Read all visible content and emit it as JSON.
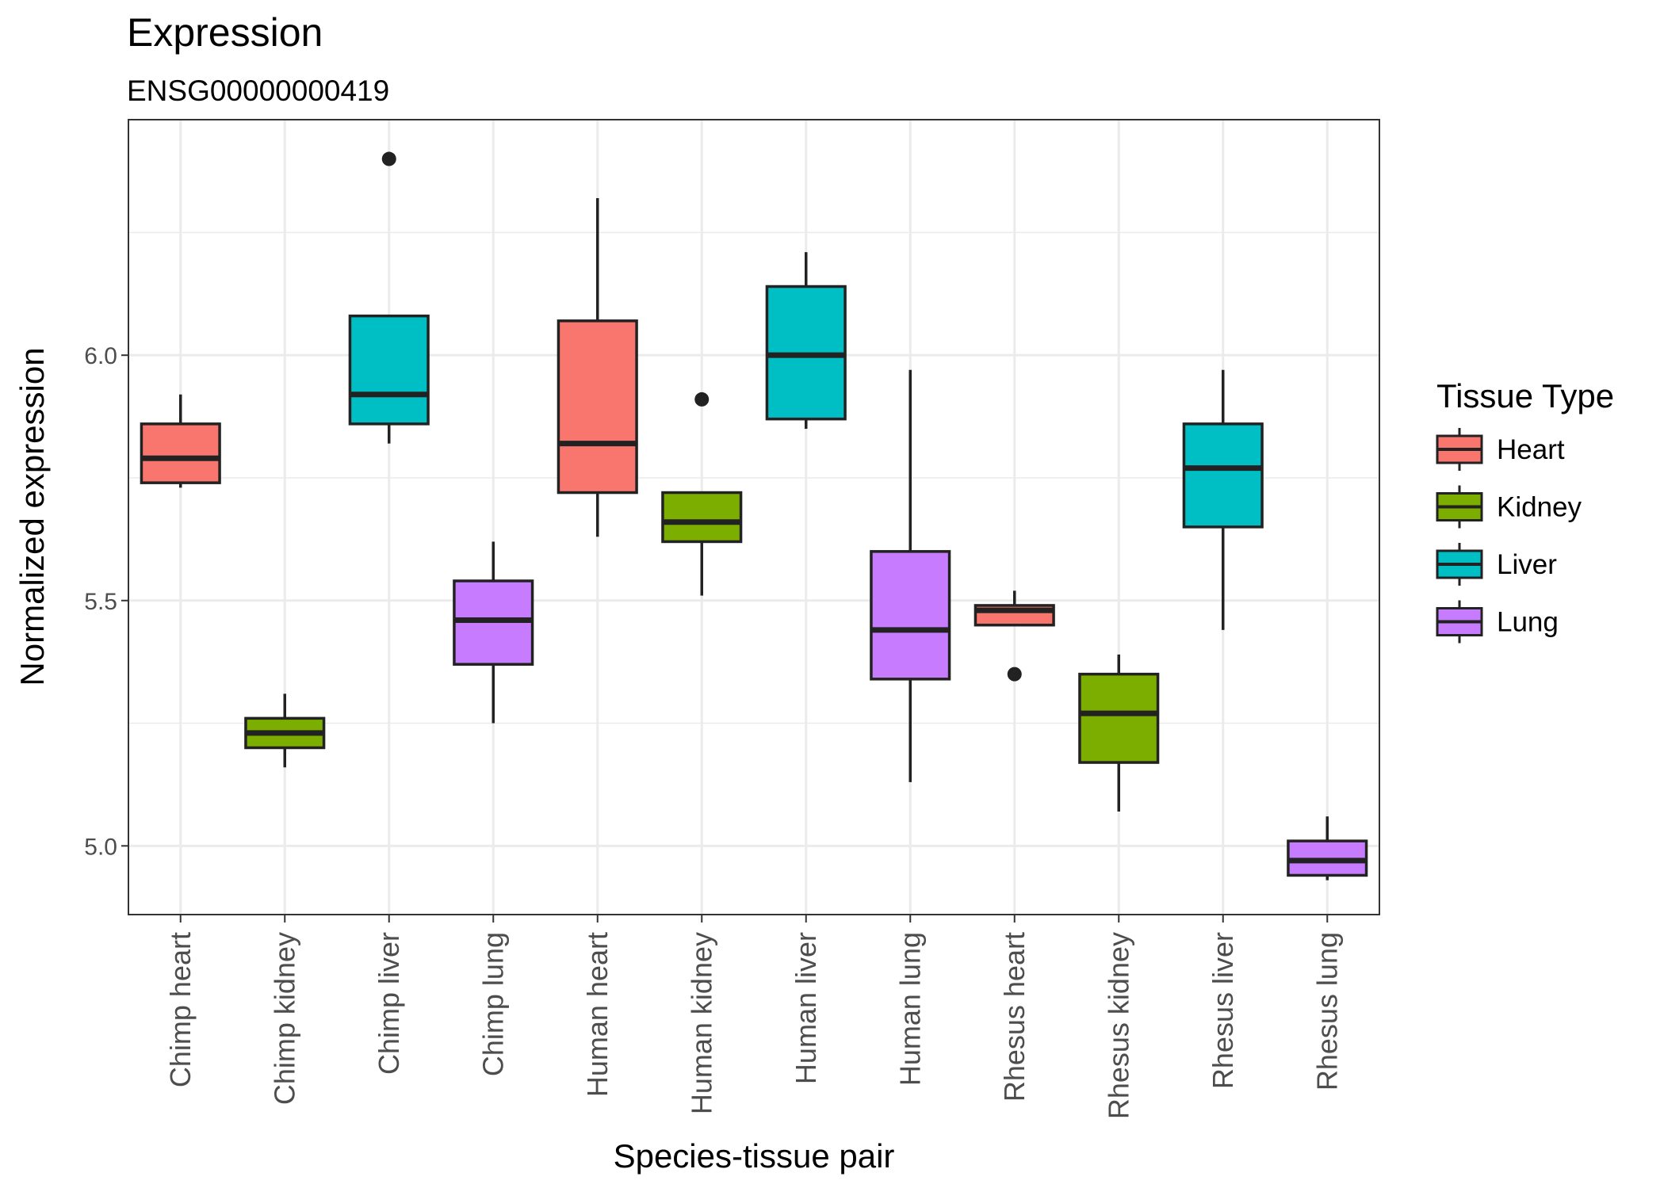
{
  "chart_data": {
    "type": "boxplot",
    "title": "Expression",
    "subtitle": "ENSG00000000419",
    "xlabel": "Species-tissue pair",
    "ylabel": "Normalized expression",
    "ylim": [
      4.86,
      6.48
    ],
    "yticks": [
      5.0,
      5.5,
      6.0
    ],
    "ytick_labels": [
      "5.0",
      "5.5",
      "6.0"
    ],
    "grid": true,
    "legend": {
      "title": "Tissue Type",
      "position": "right",
      "items": [
        {
          "label": "Heart",
          "color": "#F8766D"
        },
        {
          "label": "Kidney",
          "color": "#7CAE00"
        },
        {
          "label": "Liver",
          "color": "#00BFC4"
        },
        {
          "label": "Lung",
          "color": "#C77CFF"
        }
      ]
    },
    "categories": [
      "Chimp heart",
      "Chimp kidney",
      "Chimp liver",
      "Chimp lung",
      "Human heart",
      "Human kidney",
      "Human liver",
      "Human lung",
      "Rhesus heart",
      "Rhesus kidney",
      "Rhesus liver",
      "Rhesus lung"
    ],
    "boxes": [
      {
        "category": "Chimp heart",
        "tissue": "Heart",
        "min": 5.73,
        "q1": 5.74,
        "median": 5.79,
        "q3": 5.86,
        "max": 5.92,
        "outliers": []
      },
      {
        "category": "Chimp kidney",
        "tissue": "Kidney",
        "min": 5.16,
        "q1": 5.2,
        "median": 5.23,
        "q3": 5.26,
        "max": 5.31,
        "outliers": []
      },
      {
        "category": "Chimp liver",
        "tissue": "Liver",
        "min": 5.82,
        "q1": 5.86,
        "median": 5.92,
        "q3": 6.08,
        "max": 6.08,
        "outliers": [
          6.4
        ]
      },
      {
        "category": "Chimp lung",
        "tissue": "Lung",
        "min": 5.25,
        "q1": 5.37,
        "median": 5.46,
        "q3": 5.54,
        "max": 5.62,
        "outliers": []
      },
      {
        "category": "Human heart",
        "tissue": "Heart",
        "min": 5.63,
        "q1": 5.72,
        "median": 5.82,
        "q3": 6.07,
        "max": 6.32,
        "outliers": []
      },
      {
        "category": "Human kidney",
        "tissue": "Kidney",
        "min": 5.51,
        "q1": 5.62,
        "median": 5.66,
        "q3": 5.72,
        "max": 5.72,
        "outliers": [
          5.91
        ]
      },
      {
        "category": "Human liver",
        "tissue": "Liver",
        "min": 5.85,
        "q1": 5.87,
        "median": 6.0,
        "q3": 6.14,
        "max": 6.21,
        "outliers": []
      },
      {
        "category": "Human lung",
        "tissue": "Lung",
        "min": 5.13,
        "q1": 5.34,
        "median": 5.44,
        "q3": 5.6,
        "max": 5.97,
        "outliers": []
      },
      {
        "category": "Rhesus heart",
        "tissue": "Heart",
        "min": 5.45,
        "q1": 5.45,
        "median": 5.48,
        "q3": 5.49,
        "max": 5.52,
        "outliers": [
          5.35
        ]
      },
      {
        "category": "Rhesus kidney",
        "tissue": "Kidney",
        "min": 5.07,
        "q1": 5.17,
        "median": 5.27,
        "q3": 5.35,
        "max": 5.39,
        "outliers": []
      },
      {
        "category": "Rhesus liver",
        "tissue": "Liver",
        "min": 5.44,
        "q1": 5.65,
        "median": 5.77,
        "q3": 5.86,
        "max": 5.97,
        "outliers": []
      },
      {
        "category": "Rhesus lung",
        "tissue": "Lung",
        "min": 4.93,
        "q1": 4.94,
        "median": 4.97,
        "q3": 5.01,
        "max": 5.06,
        "outliers": []
      }
    ]
  }
}
